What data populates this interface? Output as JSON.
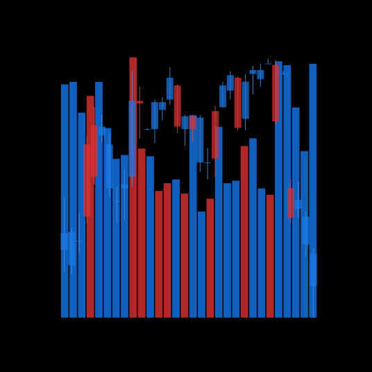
{
  "chart_data": {
    "type": "bar",
    "title": "",
    "xlabel": "",
    "ylabel": "",
    "ylim": [
      0,
      100
    ],
    "grid": false,
    "legend": "none",
    "colors": {
      "background": "#000000",
      "bar_up": "#1060c0",
      "bar_down": "#b02828",
      "candle_up": "#1a78e6",
      "candle_down": "#dc3232",
      "wick_up": "#4a90e0",
      "wick_down": "#e05050"
    },
    "volume_bars": [
      {
        "value": 91,
        "dir": "up"
      },
      {
        "value": 92,
        "dir": "up"
      },
      {
        "value": 80,
        "dir": "up"
      },
      {
        "value": 86.5,
        "dir": "down"
      },
      {
        "value": 92,
        "dir": "up"
      },
      {
        "value": 74,
        "dir": "up"
      },
      {
        "value": 62,
        "dir": "up"
      },
      {
        "value": 63.5,
        "dir": "up"
      },
      {
        "value": 101.5,
        "dir": "down"
      },
      {
        "value": 66,
        "dir": "down"
      },
      {
        "value": 63,
        "dir": "up"
      },
      {
        "value": 49.5,
        "dir": "down"
      },
      {
        "value": 52.5,
        "dir": "down"
      },
      {
        "value": 54,
        "dir": "up"
      },
      {
        "value": 48.5,
        "dir": "down"
      },
      {
        "value": 79,
        "dir": "up"
      },
      {
        "value": 41.5,
        "dir": "up"
      },
      {
        "value": 46.5,
        "dir": "down"
      },
      {
        "value": 74.5,
        "dir": "up"
      },
      {
        "value": 52.5,
        "dir": "up"
      },
      {
        "value": 53.5,
        "dir": "up"
      },
      {
        "value": 67,
        "dir": "down"
      },
      {
        "value": 70,
        "dir": "up"
      },
      {
        "value": 50.5,
        "dir": "up"
      },
      {
        "value": 48,
        "dir": "down"
      },
      {
        "value": 100,
        "dir": "up"
      },
      {
        "value": 98.5,
        "dir": "up"
      },
      {
        "value": 82,
        "dir": "up"
      },
      {
        "value": 65,
        "dir": "up"
      },
      {
        "value": 99,
        "dir": "up"
      }
    ],
    "candles": [
      {
        "open": 26.5,
        "close": 33,
        "high": 47,
        "low": 18
      },
      {
        "open": 20.5,
        "close": 33.5,
        "high": 35,
        "low": 17
      },
      {
        "open": 30,
        "close": 30,
        "high": 41,
        "low": 25
      },
      {
        "open": 67.5,
        "close": 39.5,
        "high": 71,
        "low": 37
      },
      {
        "open": 75,
        "close": 55,
        "high": 82,
        "low": 52
      },
      {
        "open": 71,
        "close": 74.5,
        "high": 79,
        "low": 68
      },
      {
        "open": 50.5,
        "close": 67.5,
        "high": 72,
        "low": 47
      },
      {
        "open": 45.5,
        "close": 45.5,
        "high": 51,
        "low": 37
      },
      {
        "open": 50.5,
        "close": 52,
        "high": 58,
        "low": 38
      },
      {
        "open": 55,
        "close": 84.5,
        "high": 96,
        "low": 51
      },
      {
        "open": 84.5,
        "close": 83.5,
        "high": 90,
        "low": 70
      },
      {
        "open": 73.5,
        "close": 73.5,
        "high": 74,
        "low": 73
      },
      {
        "open": 73.5,
        "close": 84,
        "high": 85,
        "low": 68
      },
      {
        "open": 81,
        "close": 84,
        "high": 86,
        "low": 77
      },
      {
        "open": 85,
        "close": 93.5,
        "high": 97.5,
        "low": 83
      },
      {
        "open": 90.5,
        "close": 74.5,
        "high": 91,
        "low": 72
      },
      {
        "open": 73.5,
        "close": 78.5,
        "high": 79,
        "low": 67
      },
      {
        "open": 78.5,
        "close": 73.5,
        "high": 79,
        "low": 69
      },
      {
        "open": 60.5,
        "close": 78,
        "high": 79,
        "low": 57
      },
      {
        "open": 60.5,
        "close": 60.5,
        "high": 66,
        "low": 54
      },
      {
        "open": 80.5,
        "close": 62,
        "high": 82.5,
        "low": 55
      },
      {
        "open": 82,
        "close": 90.5,
        "high": 92,
        "low": 82
      },
      {
        "open": 88.5,
        "close": 94.5,
        "high": 96,
        "low": 85
      },
      {
        "open": 93.5,
        "close": 74,
        "high": 94,
        "low": 73
      },
      {
        "open": 77.5,
        "close": 92,
        "high": 95,
        "low": 73
      },
      {
        "open": 95,
        "close": 96.5,
        "high": 98,
        "low": 87
      },
      {
        "open": 93,
        "close": 96.5,
        "high": 99,
        "low": 90
      },
      {
        "open": 99,
        "close": 99,
        "high": 101,
        "low": 99
      },
      {
        "open": 98.5,
        "close": 76.5,
        "high": 100.5,
        "low": 75
      },
      {
        "open": 95,
        "close": 95,
        "high": 96,
        "low": 95
      },
      {
        "open": 50.5,
        "close": 39,
        "high": 54,
        "low": 37
      },
      {
        "open": 42.5,
        "close": 46,
        "high": 53,
        "low": 39
      },
      {
        "open": 28.5,
        "close": 39.5,
        "high": 41.5,
        "low": 24
      },
      {
        "open": 12.5,
        "close": 25,
        "high": 27,
        "low": 0
      }
    ]
  }
}
